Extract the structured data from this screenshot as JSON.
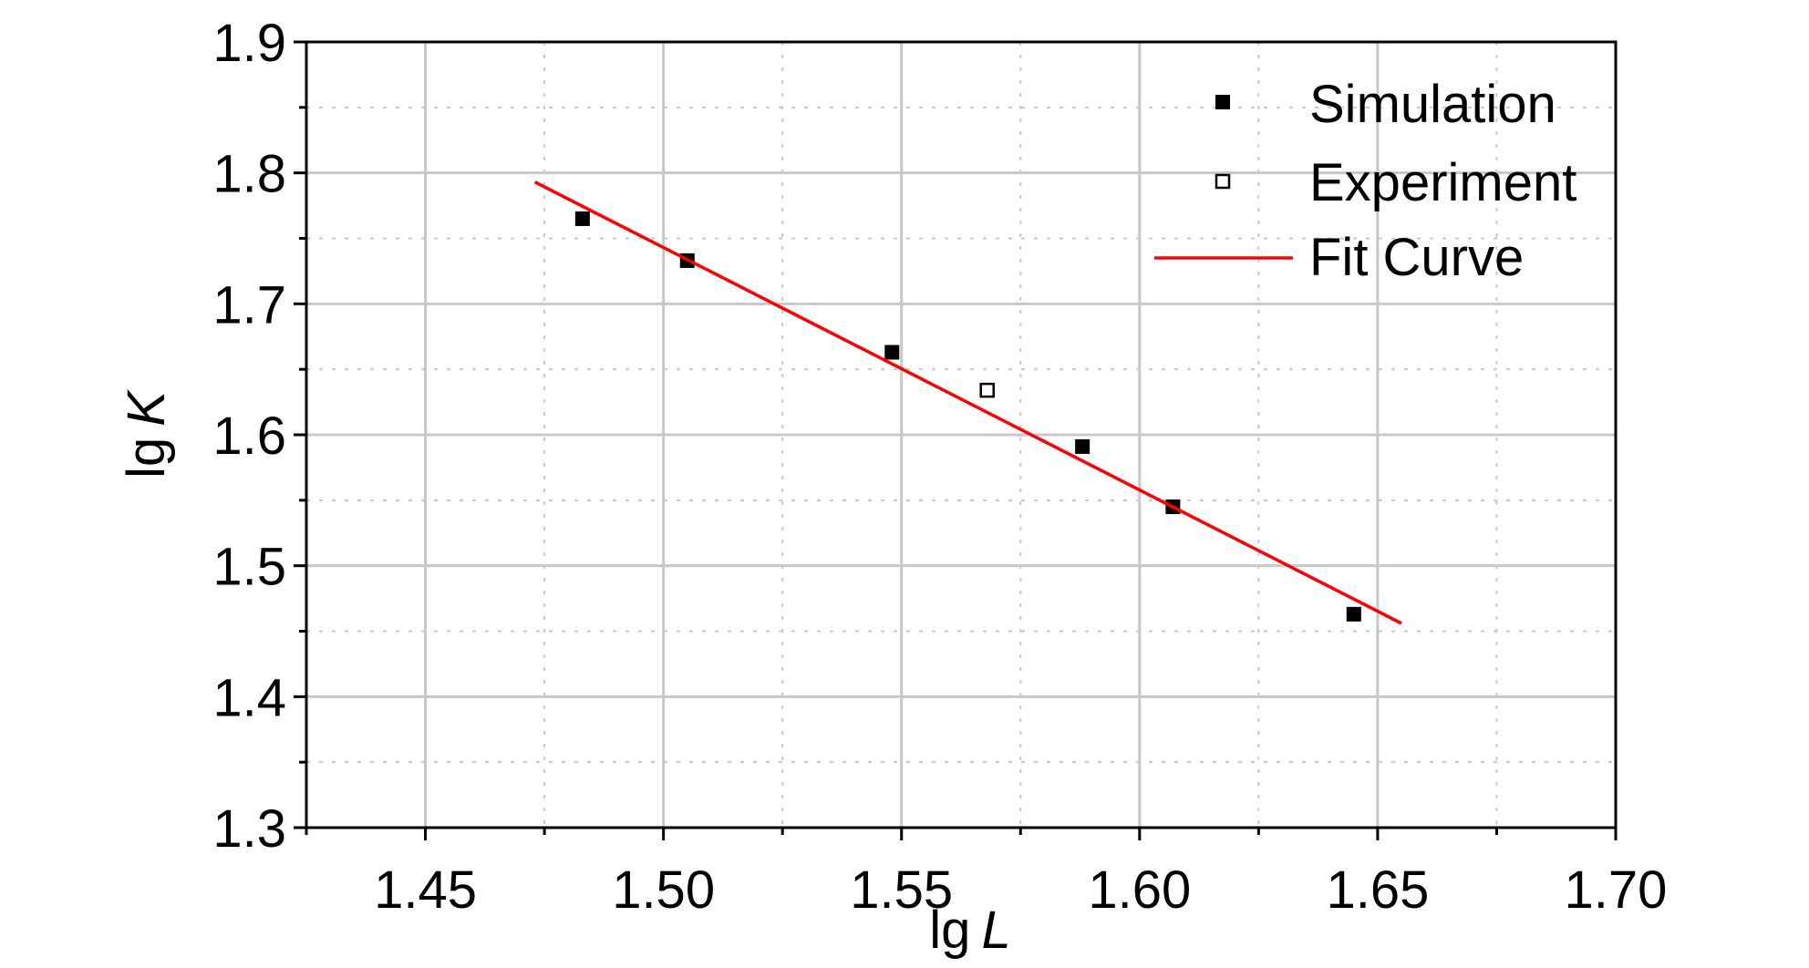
{
  "chart_data": {
    "type": "scatter",
    "title": "",
    "xlabel_prefix": "lg",
    "xlabel_var": "L",
    "ylabel_prefix": "lg",
    "ylabel_var": "K",
    "xlim": [
      1.425,
      1.7
    ],
    "ylim": [
      1.3,
      1.9
    ],
    "x_ticks": [
      1.45,
      1.5,
      1.55,
      1.6,
      1.65,
      1.7
    ],
    "x_tick_labels": [
      "1.45",
      "1.50",
      "1.55",
      "1.60",
      "1.65",
      "1.70"
    ],
    "y_ticks": [
      1.3,
      1.4,
      1.5,
      1.6,
      1.7,
      1.8,
      1.9
    ],
    "y_tick_labels": [
      "1.3",
      "1.4",
      "1.5",
      "1.6",
      "1.7",
      "1.8",
      "1.9"
    ],
    "grid": true,
    "legend_position": "top-right",
    "series": [
      {
        "name": "Simulation",
        "marker": "filled-square",
        "color": "#000000",
        "points": [
          {
            "x": 1.483,
            "y": 1.765
          },
          {
            "x": 1.505,
            "y": 1.733
          },
          {
            "x": 1.548,
            "y": 1.663
          },
          {
            "x": 1.588,
            "y": 1.591
          },
          {
            "x": 1.607,
            "y": 1.545
          },
          {
            "x": 1.645,
            "y": 1.463
          }
        ]
      },
      {
        "name": "Experiment",
        "marker": "open-square",
        "color": "#000000",
        "points": [
          {
            "x": 1.568,
            "y": 1.634
          }
        ]
      },
      {
        "name": "Fit Curve",
        "marker": "line",
        "color": "#ff0000",
        "points": [
          {
            "x": 1.473,
            "y": 1.793
          },
          {
            "x": 1.655,
            "y": 1.456
          }
        ]
      }
    ]
  }
}
